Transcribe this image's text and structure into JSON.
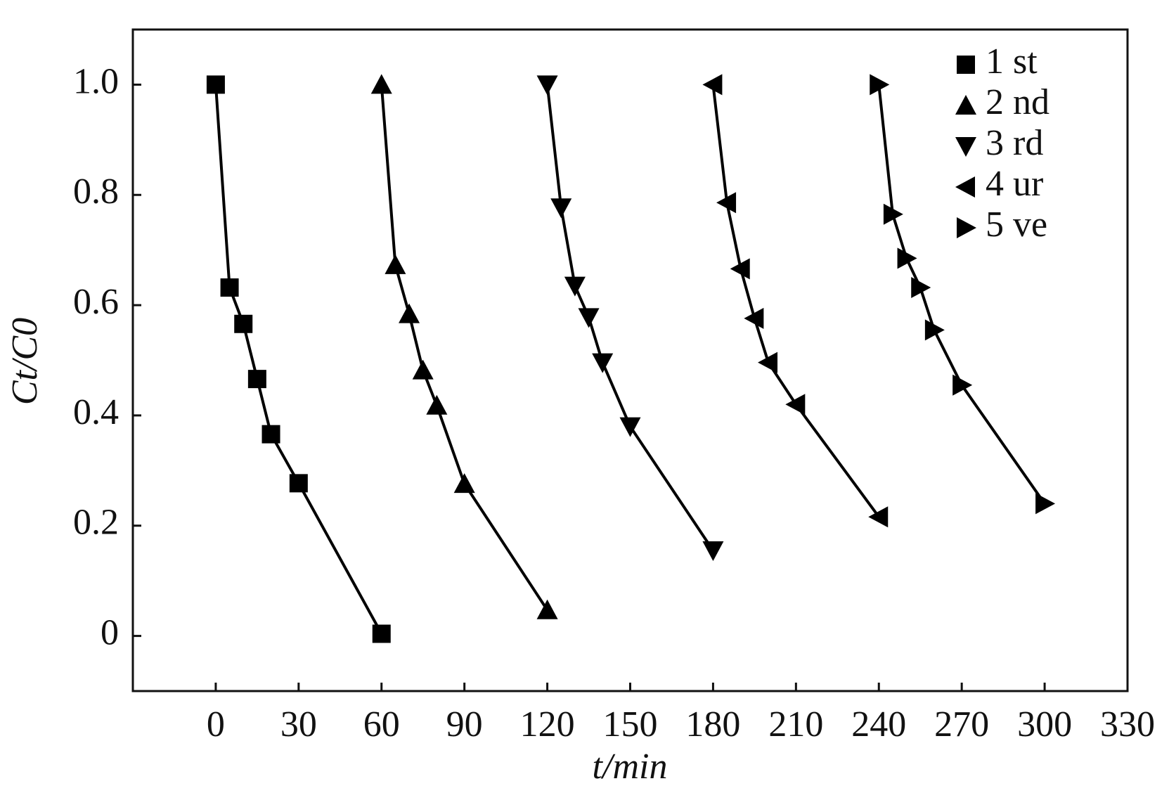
{
  "chart_data": {
    "type": "line",
    "xlabel": "t/min",
    "ylabel": "Ct/C0",
    "xlim": [
      -30,
      330
    ],
    "ylim": [
      -0.1,
      1.1
    ],
    "xticks": [
      0,
      30,
      60,
      90,
      120,
      150,
      180,
      210,
      240,
      270,
      300,
      330
    ],
    "yticks": [
      0,
      0.2,
      0.4,
      0.6,
      0.8,
      {
        "value": 1,
        "label": "1.0"
      }
    ],
    "legend": "upper right",
    "series": [
      {
        "name": "1 st",
        "color": "#000000",
        "marker": "square",
        "x": [
          0,
          5,
          10,
          15,
          20,
          30,
          60
        ],
        "values": [
          1.0,
          0.632,
          0.566,
          0.466,
          0.366,
          0.277,
          0.004
        ]
      },
      {
        "name": "2 nd",
        "color": "#000000",
        "marker": "triangle-up",
        "x": [
          60,
          65,
          70,
          75,
          80,
          90,
          120
        ],
        "values": [
          1.0,
          0.673,
          0.584,
          0.482,
          0.418,
          0.276,
          0.047
        ]
      },
      {
        "name": "3 rd",
        "color": "#000000",
        "marker": "triangle-down",
        "x": [
          120,
          125,
          130,
          135,
          140,
          150,
          180
        ],
        "values": [
          1.0,
          0.777,
          0.635,
          0.578,
          0.496,
          0.38,
          0.155
        ]
      },
      {
        "name": "4 ur",
        "color": "#000000",
        "marker": "triangle-left",
        "x": [
          180,
          185,
          190,
          195,
          200,
          210,
          240
        ],
        "values": [
          1.0,
          0.786,
          0.666,
          0.576,
          0.496,
          0.42,
          0.216
        ]
      },
      {
        "name": "5 ve",
        "color": "#000000",
        "marker": "triangle-right",
        "x": [
          240,
          245,
          250,
          255,
          260,
          270,
          300
        ],
        "values": [
          1.0,
          0.765,
          0.685,
          0.632,
          0.555,
          0.455,
          0.24
        ]
      }
    ]
  }
}
